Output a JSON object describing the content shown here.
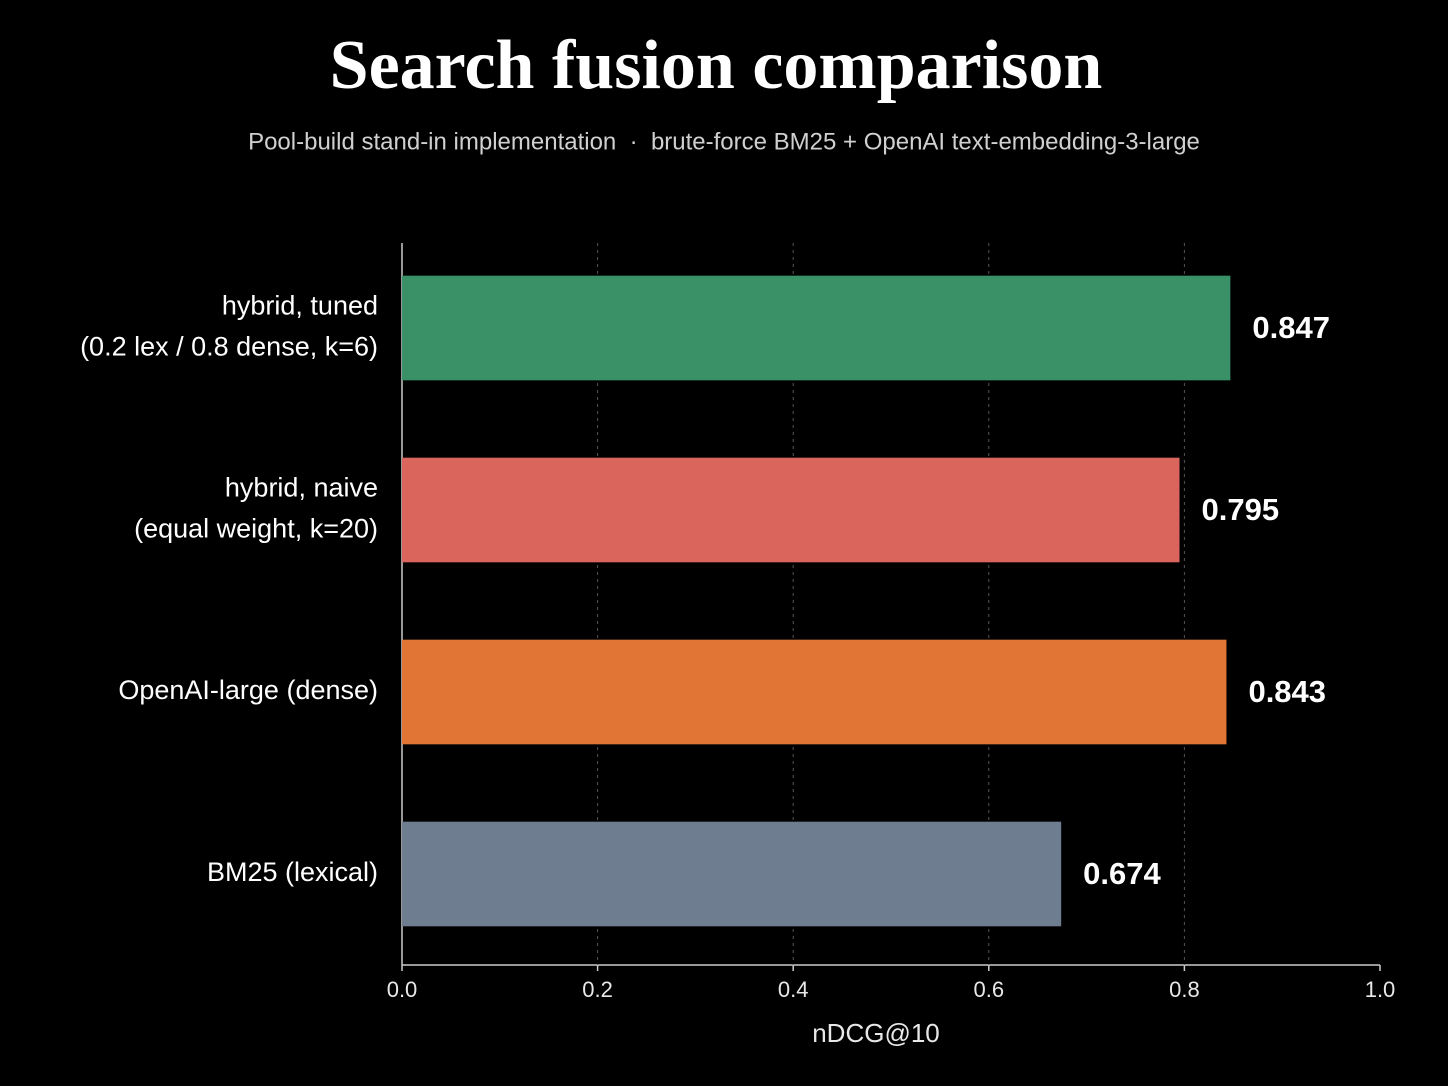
{
  "chart_data": {
    "type": "bar",
    "orientation": "horizontal",
    "title": "Search fusion comparison",
    "subtitle": "Pool-build stand-in implementation  ·  brute-force BM25 + OpenAI text-embedding-3-large",
    "x_label": "nDCG@10",
    "categories": [
      "hybrid, tuned\n(0.2 lex / 0.8 dense, k=6)",
      "hybrid, naive\n(equal weight, k=20)",
      "OpenAI-large (dense)",
      "BM25 (lexical)"
    ],
    "values": [
      0.847,
      0.795,
      0.843,
      0.674
    ],
    "colors": [
      "#3a9168",
      "#d9655c",
      "#e07535",
      "#6f7d90"
    ],
    "xlim": [
      0,
      1
    ],
    "xticks": [
      {
        "value": 0,
        "label": "0.0"
      },
      0.2,
      0.4,
      0.6,
      0.8,
      {
        "value": 1,
        "label": "1.0"
      }
    ],
    "grid": true
  }
}
